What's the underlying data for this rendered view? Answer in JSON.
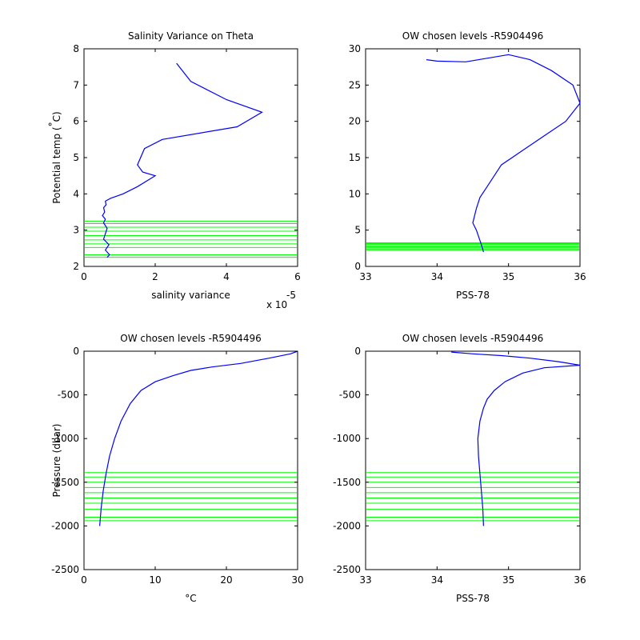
{
  "chart_data": [
    {
      "type": "line",
      "title": "Salinity Variance on Theta",
      "xlabel": "salinity variance",
      "ylabel": "Potential temp (°C)",
      "ylabel_parts": {
        "main": "Potential temp (",
        "degree": "°",
        "unit": "C)"
      },
      "x_multiplier": "x 10",
      "x_exponent": "-5",
      "xlim": [
        0,
        6
      ],
      "ylim": [
        2,
        8
      ],
      "xticks": [
        0,
        2,
        4,
        6
      ],
      "yticks": [
        2,
        3,
        4,
        5,
        6,
        7,
        8
      ],
      "series": [
        {
          "color": "#0000ff",
          "x": [
            0.65,
            0.72,
            0.6,
            0.7,
            0.55,
            0.6,
            0.65,
            0.55,
            0.6,
            0.52,
            0.58,
            0.55,
            0.62,
            0.6,
            0.75,
            1.1,
            1.5,
            2.0,
            1.65,
            1.5,
            1.7,
            2.2,
            4.3,
            5.0,
            4.0,
            3.0,
            2.6
          ],
          "y": [
            2.25,
            2.32,
            2.45,
            2.6,
            2.75,
            2.9,
            3.05,
            3.2,
            3.3,
            3.4,
            3.5,
            3.62,
            3.7,
            3.8,
            3.88,
            4.0,
            4.2,
            4.5,
            4.6,
            4.8,
            5.25,
            5.5,
            5.85,
            6.25,
            6.6,
            7.1,
            7.6
          ]
        }
      ],
      "reference_lines": {
        "orientation": "horizontal",
        "color": "#00ff00",
        "values": [
          2.25,
          2.32,
          2.52,
          2.62,
          2.73,
          2.85,
          2.97,
          3.08,
          3.18,
          3.25
        ]
      }
    },
    {
      "type": "line",
      "title": "OW chosen levels -R5904496",
      "xlabel": "PSS-78",
      "ylabel": "",
      "xlim": [
        33,
        36
      ],
      "ylim": [
        0,
        30
      ],
      "xticks": [
        33,
        34,
        35,
        36
      ],
      "yticks": [
        0,
        5,
        10,
        15,
        20,
        25,
        30
      ],
      "series": [
        {
          "color": "#0000ff",
          "x": [
            34.65,
            34.62,
            34.55,
            34.5,
            34.55,
            34.6,
            34.7,
            34.8,
            34.9,
            35.2,
            35.5,
            35.8,
            36.0,
            35.9,
            35.6,
            35.3,
            35.0,
            34.7,
            34.4,
            34.0,
            33.85
          ],
          "y": [
            2.0,
            3.0,
            5.0,
            6.0,
            8.0,
            9.5,
            11.0,
            12.5,
            14.0,
            16.0,
            18.0,
            20.0,
            22.5,
            25.0,
            27.0,
            28.5,
            29.2,
            28.7,
            28.2,
            28.3,
            28.5
          ]
        }
      ],
      "reference_lines": {
        "orientation": "horizontal",
        "color": "#00ff00",
        "values": [
          2.25,
          2.4,
          2.55,
          2.7,
          2.85,
          3.0,
          3.15,
          3.25
        ]
      }
    },
    {
      "type": "line",
      "title": "OW chosen levels -R5904496",
      "xlabel": "°C",
      "ylabel": "Pressure (dbar)",
      "xlim": [
        0,
        30
      ],
      "ylim": [
        -2500,
        0
      ],
      "xticks": [
        0,
        10,
        20,
        30
      ],
      "yticks": [
        -2500,
        -2000,
        -1500,
        -1000,
        -500,
        0
      ],
      "series": [
        {
          "color": "#0000ff",
          "x": [
            2.2,
            2.4,
            2.7,
            3.1,
            3.6,
            4.3,
            5.2,
            6.5,
            8.0,
            10.0,
            12.5,
            15.0,
            18.0,
            22.0,
            26.0,
            29.0,
            30.0
          ],
          "y": [
            -2000,
            -1800,
            -1600,
            -1400,
            -1200,
            -1000,
            -800,
            -600,
            -450,
            -350,
            -280,
            -220,
            -180,
            -140,
            -80,
            -30,
            0
          ]
        }
      ],
      "reference_lines": {
        "orientation": "horizontal",
        "color": "#00ff00",
        "values": [
          -1390,
          -1440,
          -1500,
          -1560,
          -1620,
          -1680,
          -1740,
          -1810,
          -1900,
          -1940
        ]
      }
    },
    {
      "type": "line",
      "title": "OW chosen levels -R5904496",
      "xlabel": "PSS-78",
      "ylabel": "",
      "xlim": [
        33,
        36
      ],
      "ylim": [
        -2500,
        0
      ],
      "xticks": [
        33,
        34,
        35,
        36
      ],
      "yticks": [
        -2500,
        -2000,
        -1500,
        -1000,
        -500,
        0
      ],
      "series": [
        {
          "color": "#0000ff",
          "x": [
            34.65,
            34.64,
            34.62,
            34.6,
            34.58,
            34.57,
            34.6,
            34.65,
            34.7,
            34.8,
            34.95,
            35.2,
            35.5,
            36.0,
            35.7,
            35.3,
            34.9,
            34.5,
            34.2
          ],
          "y": [
            -2000,
            -1800,
            -1600,
            -1400,
            -1200,
            -1000,
            -800,
            -650,
            -550,
            -450,
            -350,
            -250,
            -190,
            -160,
            -120,
            -80,
            -50,
            -30,
            -10
          ]
        }
      ],
      "reference_lines": {
        "orientation": "horizontal",
        "color": "#00ff00",
        "values": [
          -1390,
          -1440,
          -1500,
          -1560,
          -1620,
          -1680,
          -1740,
          -1810,
          -1900,
          -1940
        ]
      }
    }
  ]
}
